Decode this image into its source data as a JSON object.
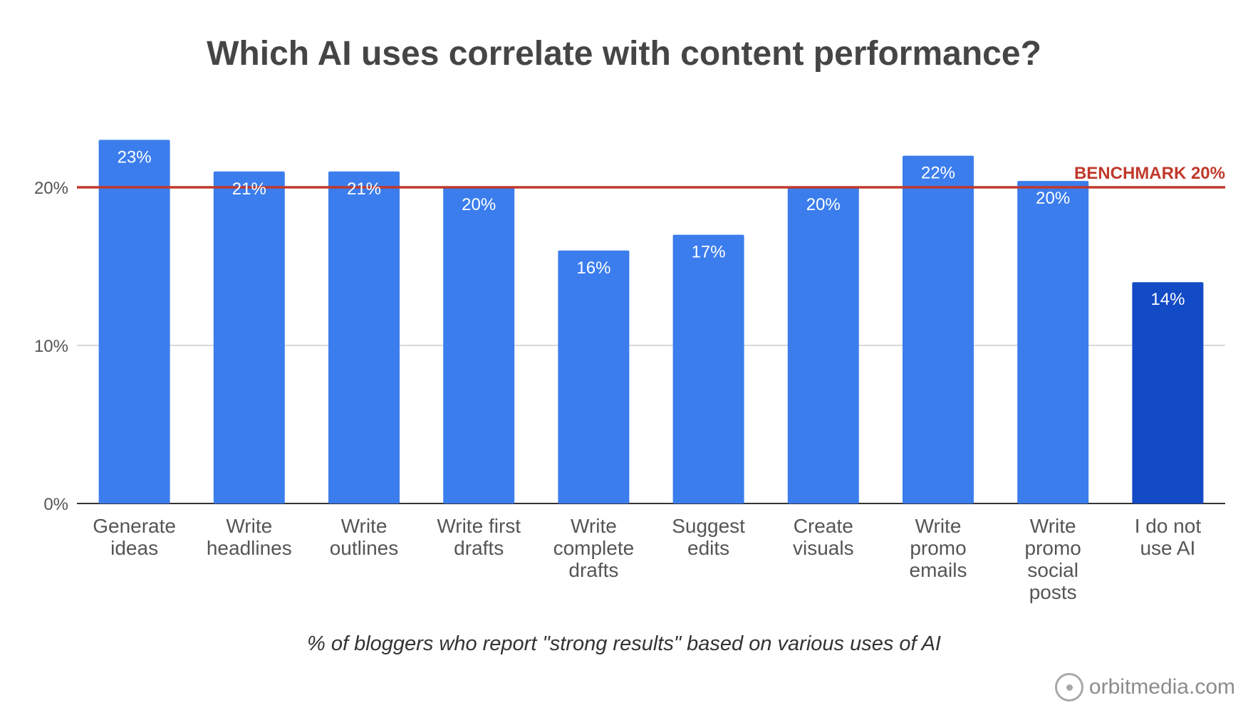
{
  "chart_data": {
    "type": "bar",
    "title": "Which AI uses correlate with content performance?",
    "caption": "% of bloggers who report \"strong results\" based on various uses of AI",
    "categories": [
      [
        "Generate",
        "ideas"
      ],
      [
        "Write",
        "headlines"
      ],
      [
        "Write",
        "outlines"
      ],
      [
        "Write first",
        "drafts"
      ],
      [
        "Write",
        "complete",
        "drafts"
      ],
      [
        "Suggest",
        "edits"
      ],
      [
        "Create",
        "visuals"
      ],
      [
        "Write",
        "promo",
        "emails"
      ],
      [
        "Write",
        "promo",
        "social",
        "posts"
      ],
      [
        "I do not",
        "use AI"
      ]
    ],
    "values": [
      23,
      21,
      21,
      20,
      16,
      17,
      20,
      22,
      20.4,
      14
    ],
    "value_labels": [
      "23%",
      "21%",
      "21%",
      "20%",
      "16%",
      "17%",
      "20%",
      "22%",
      "20%",
      "14%"
    ],
    "ylim": [
      0,
      25
    ],
    "yticks": [
      0,
      10,
      20
    ],
    "ytick_labels": [
      "0%",
      "10%",
      "20%"
    ],
    "grid": true,
    "benchmark": {
      "value": 20,
      "label": "BENCHMARK 20%",
      "color": "#c0392b"
    },
    "colors": {
      "bar": "#3b7ded",
      "highlight_bar": "#134ac6",
      "highlight_index": 9
    }
  },
  "brand": {
    "text": "orbitmedia.com",
    "icon": "orbit-logo-icon"
  }
}
